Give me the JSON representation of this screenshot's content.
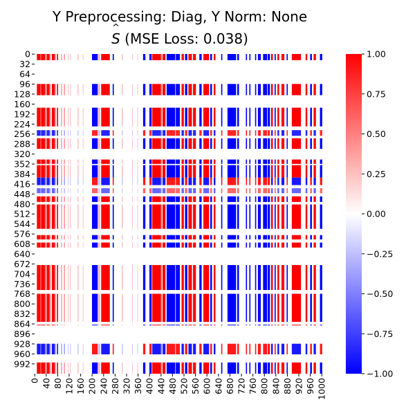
{
  "chart_data": {
    "type": "heatmap",
    "title_line1": "Y Preprocessing: Diag, Y Norm: None",
    "title_line2_prefix": "S",
    "title_line2_suffix": " (MSE Loss: 0.038)",
    "n_rows": 1024,
    "n_cols": 1024,
    "y_tick_labels": [
      "0",
      "32",
      "64",
      "96",
      "128",
      "160",
      "192",
      "224",
      "256",
      "288",
      "320",
      "352",
      "384",
      "416",
      "448",
      "480",
      "512",
      "544",
      "576",
      "608",
      "640",
      "672",
      "704",
      "736",
      "768",
      "800",
      "832",
      "864",
      "896",
      "928",
      "960",
      "992"
    ],
    "x_tick_labels": [
      "0",
      "40",
      "80",
      "120",
      "160",
      "200",
      "240",
      "280",
      "320",
      "360",
      "400",
      "440",
      "480",
      "520",
      "560",
      "600",
      "640",
      "680",
      "720",
      "760",
      "800",
      "840",
      "880",
      "920",
      "960",
      "1000"
    ],
    "colorbar": {
      "colormap": "bwr",
      "vmin": -1.0,
      "vmax": 1.0,
      "ticks": [
        1.0,
        0.75,
        0.5,
        0.25,
        0.0,
        -0.25,
        -0.5,
        -0.75,
        -1.0
      ],
      "tick_labels": [
        "1.00",
        "0.75",
        "0.50",
        "0.25",
        "0.00",
        "−0.25",
        "−0.50",
        "−0.75",
        "−1.00"
      ],
      "colors": {
        "low": "#0000ff",
        "mid": "#ffffff",
        "high": "#ff0000"
      }
    },
    "column_pattern": [
      {
        "start": 8,
        "end": 20,
        "value": 1.0
      },
      {
        "start": 20,
        "end": 24,
        "value": 0.75
      },
      {
        "start": 24,
        "end": 36,
        "value": 1.0
      },
      {
        "start": 36,
        "end": 40,
        "value": 0.6
      },
      {
        "start": 42,
        "end": 52,
        "value": 1.0
      },
      {
        "start": 52,
        "end": 56,
        "value": 0.5
      },
      {
        "start": 60,
        "end": 70,
        "value": 1.0
      },
      {
        "start": 70,
        "end": 74,
        "value": 0.5
      },
      {
        "start": 78,
        "end": 82,
        "value": 1.0
      },
      {
        "start": 92,
        "end": 96,
        "value": 0.35
      },
      {
        "start": 102,
        "end": 106,
        "value": 0.4
      },
      {
        "start": 116,
        "end": 118,
        "value": 0.3
      },
      {
        "start": 124,
        "end": 126,
        "value": 0.35
      },
      {
        "start": 150,
        "end": 153,
        "value": 0.3
      },
      {
        "start": 168,
        "end": 170,
        "value": 0.3
      },
      {
        "start": 200,
        "end": 220,
        "value": -1.0
      },
      {
        "start": 222,
        "end": 228,
        "value": 0.3
      },
      {
        "start": 232,
        "end": 262,
        "value": 1.0
      },
      {
        "start": 272,
        "end": 276,
        "value": -1.0
      },
      {
        "start": 304,
        "end": 307,
        "value": 0.3
      },
      {
        "start": 340,
        "end": 342,
        "value": 0.3
      },
      {
        "start": 358,
        "end": 360,
        "value": 0.3
      },
      {
        "start": 378,
        "end": 386,
        "value": -1.0
      },
      {
        "start": 400,
        "end": 408,
        "value": -1.0
      },
      {
        "start": 410,
        "end": 440,
        "value": 1.0
      },
      {
        "start": 440,
        "end": 444,
        "value": 0.5
      },
      {
        "start": 446,
        "end": 456,
        "value": 1.0
      },
      {
        "start": 460,
        "end": 490,
        "value": -1.0
      },
      {
        "start": 492,
        "end": 506,
        "value": -1.0
      },
      {
        "start": 512,
        "end": 520,
        "value": 1.0
      },
      {
        "start": 524,
        "end": 532,
        "value": -1.0
      },
      {
        "start": 536,
        "end": 548,
        "value": 1.0
      },
      {
        "start": 552,
        "end": 562,
        "value": 1.0
      },
      {
        "start": 574,
        "end": 582,
        "value": -1.0
      },
      {
        "start": 588,
        "end": 608,
        "value": 1.0
      },
      {
        "start": 612,
        "end": 618,
        "value": -1.0
      },
      {
        "start": 624,
        "end": 630,
        "value": 1.0
      },
      {
        "start": 650,
        "end": 654,
        "value": -1.0
      },
      {
        "start": 672,
        "end": 702,
        "value": -1.0
      },
      {
        "start": 706,
        "end": 712,
        "value": -1.0
      },
      {
        "start": 736,
        "end": 740,
        "value": -1.0
      },
      {
        "start": 748,
        "end": 752,
        "value": -1.0
      },
      {
        "start": 768,
        "end": 772,
        "value": -1.0
      },
      {
        "start": 778,
        "end": 788,
        "value": -1.0
      },
      {
        "start": 796,
        "end": 810,
        "value": -1.0
      },
      {
        "start": 812,
        "end": 820,
        "value": -1.0
      },
      {
        "start": 824,
        "end": 830,
        "value": 1.0
      },
      {
        "start": 836,
        "end": 840,
        "value": -1.0
      },
      {
        "start": 846,
        "end": 852,
        "value": 1.0
      },
      {
        "start": 860,
        "end": 870,
        "value": 1.0
      },
      {
        "start": 878,
        "end": 882,
        "value": -1.0
      },
      {
        "start": 896,
        "end": 928,
        "value": 1.0
      },
      {
        "start": 944,
        "end": 950,
        "value": 1.0
      },
      {
        "start": 960,
        "end": 966,
        "value": -1.0
      },
      {
        "start": 972,
        "end": 980,
        "value": 1.0
      },
      {
        "start": 994,
        "end": 1002,
        "value": -1.0
      }
    ],
    "row_scale_pattern": [
      {
        "start": 0,
        "end": 20,
        "value": 1.0
      },
      {
        "start": 20,
        "end": 96,
        "value": 0.0
      },
      {
        "start": 96,
        "end": 132,
        "value": 1.0
      },
      {
        "start": 132,
        "end": 172,
        "value": 0.0
      },
      {
        "start": 172,
        "end": 232,
        "value": 1.0
      },
      {
        "start": 232,
        "end": 244,
        "value": 0.0
      },
      {
        "start": 244,
        "end": 262,
        "value": -0.85
      },
      {
        "start": 262,
        "end": 270,
        "value": 0.0
      },
      {
        "start": 270,
        "end": 304,
        "value": 1.0
      },
      {
        "start": 304,
        "end": 338,
        "value": 0.0
      },
      {
        "start": 338,
        "end": 352,
        "value": 1.0
      },
      {
        "start": 352,
        "end": 356,
        "value": 0.0
      },
      {
        "start": 356,
        "end": 396,
        "value": 1.0
      },
      {
        "start": 396,
        "end": 420,
        "value": -0.9
      },
      {
        "start": 420,
        "end": 430,
        "value": 0.0
      },
      {
        "start": 430,
        "end": 446,
        "value": -0.6
      },
      {
        "start": 446,
        "end": 456,
        "value": 0.0
      },
      {
        "start": 456,
        "end": 474,
        "value": 1.0
      },
      {
        "start": 474,
        "end": 482,
        "value": 0.0
      },
      {
        "start": 482,
        "end": 560,
        "value": 1.0
      },
      {
        "start": 560,
        "end": 580,
        "value": 0.0
      },
      {
        "start": 580,
        "end": 594,
        "value": 1.0
      },
      {
        "start": 594,
        "end": 604,
        "value": 0.0
      },
      {
        "start": 604,
        "end": 620,
        "value": 1.0
      },
      {
        "start": 620,
        "end": 676,
        "value": 0.0
      },
      {
        "start": 676,
        "end": 756,
        "value": 1.0
      },
      {
        "start": 756,
        "end": 768,
        "value": 0.0
      },
      {
        "start": 768,
        "end": 858,
        "value": 1.0
      },
      {
        "start": 858,
        "end": 866,
        "value": 0.0
      },
      {
        "start": 866,
        "end": 870,
        "value": 0.6
      },
      {
        "start": 870,
        "end": 928,
        "value": 0.0
      },
      {
        "start": 928,
        "end": 962,
        "value": -0.9
      },
      {
        "start": 962,
        "end": 988,
        "value": 0.0
      },
      {
        "start": 988,
        "end": 1024,
        "value": 1.0
      }
    ]
  }
}
